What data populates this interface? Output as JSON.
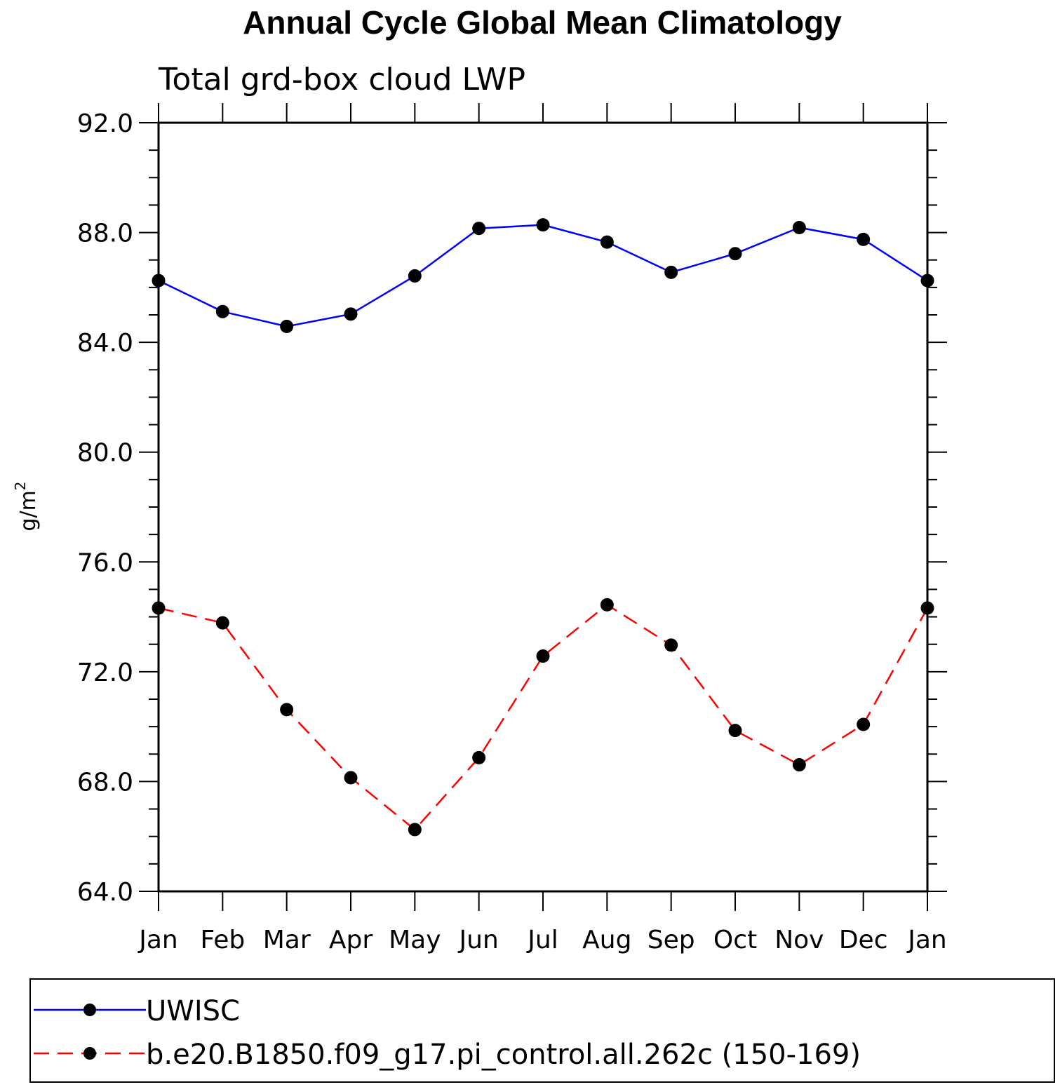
{
  "chart_data": {
    "type": "line",
    "title": "Annual Cycle Global Mean Climatology",
    "subtitle": "Total grd-box cloud LWP",
    "ylabel_base": "g/m",
    "ylabel_sup": "2",
    "xlabel": "",
    "categories": [
      "Jan",
      "Feb",
      "Mar",
      "Apr",
      "May",
      "Jun",
      "Jul",
      "Aug",
      "Sep",
      "Oct",
      "Nov",
      "Dec",
      "Jan"
    ],
    "ylim": [
      64.0,
      92.0
    ],
    "yticks": [
      64.0,
      68.0,
      72.0,
      76.0,
      80.0,
      84.0,
      88.0,
      92.0
    ],
    "ytick_labels": [
      "64.0",
      "68.0",
      "72.0",
      "76.0",
      "80.0",
      "84.0",
      "88.0",
      "92.0"
    ],
    "series": [
      {
        "name": "UWISC",
        "color": "#0000ff",
        "dashed": false,
        "values": [
          86.25,
          85.12,
          84.58,
          85.03,
          86.42,
          88.15,
          88.28,
          87.65,
          86.55,
          87.23,
          88.18,
          87.75,
          86.25
        ]
      },
      {
        "name": "b.e20.B1850.f09_g17.pi_control.all.262c (150-169)",
        "color": "#ff0000",
        "dashed": true,
        "values": [
          74.32,
          73.78,
          70.62,
          68.14,
          66.25,
          68.87,
          72.57,
          74.44,
          72.97,
          69.86,
          68.61,
          70.08,
          74.32
        ]
      }
    ],
    "marker_color": "#000000",
    "legend_placement": "bottom"
  }
}
